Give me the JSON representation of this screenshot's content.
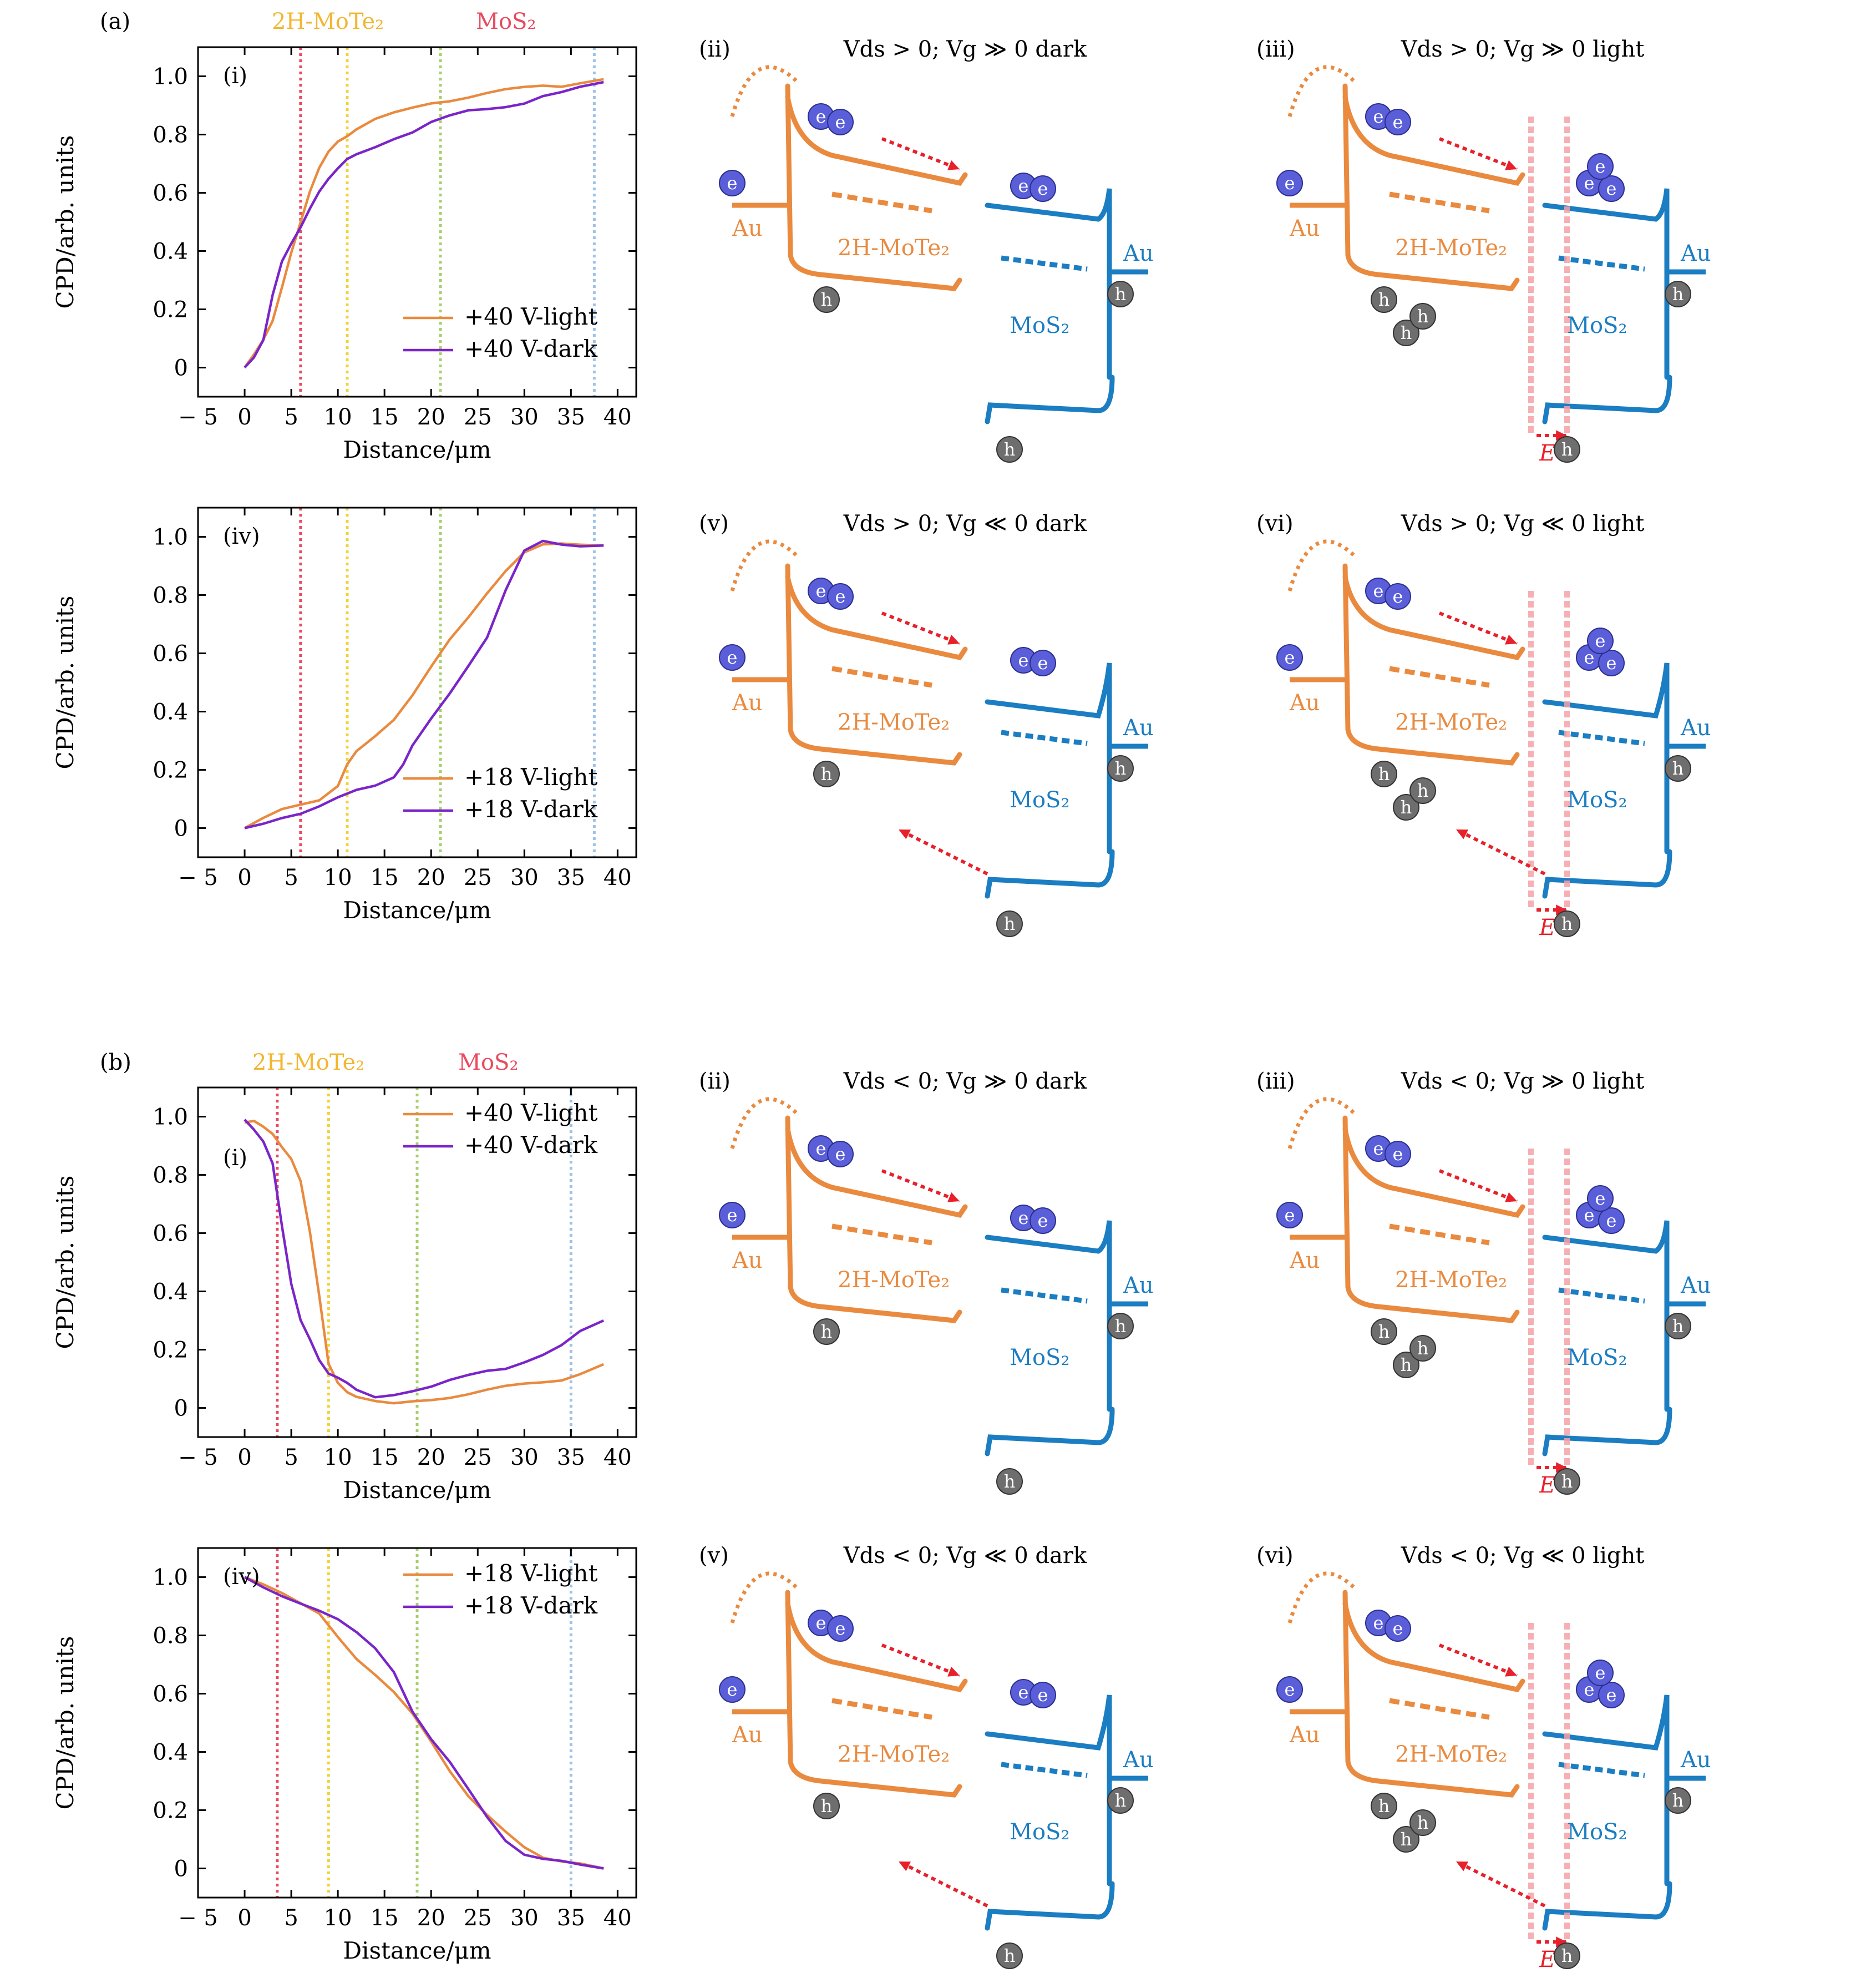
{
  "figure": {
    "label_a": "(a)",
    "label_b": "(b)",
    "top_labels": {
      "mote2": "2H-MoTe₂",
      "mos2": "MoS₂"
    }
  },
  "colors": {
    "orange": "#E98A3F",
    "purple": "#7A25C9",
    "blue": "#1B7DC2",
    "red_arrow": "#E8202A",
    "pink_band": "#F5A3A8",
    "line_red": "#E84A5F",
    "line_yellow": "#F2D23A",
    "line_green": "#A6CF6B",
    "line_blue": "#9EC3E6",
    "electron": "#5A5FD9",
    "hole": "#6E6E6E"
  },
  "chart_data": [
    {
      "id": "a-i",
      "type": "line",
      "panel_label": "(i)",
      "xlabel": "Distance/μm",
      "ylabel": "CPD/arb. units",
      "xlim": [
        -5,
        42
      ],
      "ylim": [
        -0.1,
        1.1
      ],
      "xticks": [
        -5,
        0,
        5,
        10,
        15,
        20,
        25,
        30,
        35,
        40
      ],
      "yticks": [
        0,
        0.2,
        0.4,
        0.6,
        0.8,
        1.0
      ],
      "vlines": [
        6,
        11,
        21,
        37.5
      ],
      "legend_position": "bottom-right",
      "series": [
        {
          "name": "+40 V-light",
          "color": "orange",
          "x": [
            0,
            1,
            2,
            3,
            4,
            5,
            6,
            7,
            8,
            9,
            10,
            11,
            12,
            14,
            16,
            18,
            20,
            22,
            24,
            26,
            28,
            30,
            32,
            34,
            36,
            38.5
          ],
          "y": [
            0,
            0.04,
            0.09,
            0.16,
            0.28,
            0.4,
            0.5,
            0.6,
            0.68,
            0.74,
            0.78,
            0.8,
            0.82,
            0.85,
            0.87,
            0.89,
            0.91,
            0.92,
            0.93,
            0.94,
            0.95,
            0.96,
            0.97,
            0.97,
            0.98,
            0.99
          ]
        },
        {
          "name": "+40 V-dark",
          "color": "purple",
          "x": [
            0,
            1,
            2,
            3,
            4,
            5,
            6,
            7,
            8,
            9,
            10,
            11,
            12,
            14,
            16,
            18,
            20,
            22,
            24,
            26,
            28,
            30,
            32,
            34,
            36,
            38.5
          ],
          "y": [
            0,
            0.04,
            0.1,
            0.25,
            0.36,
            0.42,
            0.48,
            0.55,
            0.61,
            0.65,
            0.68,
            0.71,
            0.73,
            0.76,
            0.79,
            0.81,
            0.84,
            0.86,
            0.88,
            0.89,
            0.9,
            0.91,
            0.93,
            0.94,
            0.96,
            0.98
          ]
        }
      ]
    },
    {
      "id": "a-iv",
      "type": "line",
      "panel_label": "(iv)",
      "xlabel": "Distance/μm",
      "ylabel": "CPD/arb. units",
      "xlim": [
        -5,
        42
      ],
      "ylim": [
        -0.1,
        1.1
      ],
      "xticks": [
        -5,
        0,
        5,
        10,
        15,
        20,
        25,
        30,
        35,
        40
      ],
      "yticks": [
        0,
        0.2,
        0.4,
        0.6,
        0.8,
        1.0
      ],
      "vlines": [
        6,
        11,
        21,
        37.5
      ],
      "legend_position": "bottom-right",
      "series": [
        {
          "name": "+18 V-light",
          "color": "orange",
          "x": [
            0,
            2,
            4,
            6,
            8,
            10,
            11,
            12,
            14,
            16,
            18,
            20,
            22,
            24,
            26,
            28,
            30,
            32,
            34,
            36,
            38.5
          ],
          "y": [
            0,
            0.03,
            0.06,
            0.08,
            0.1,
            0.15,
            0.22,
            0.26,
            0.31,
            0.37,
            0.46,
            0.56,
            0.65,
            0.72,
            0.8,
            0.88,
            0.95,
            0.98,
            0.98,
            0.97,
            0.97
          ]
        },
        {
          "name": "+18 V-dark",
          "color": "purple",
          "x": [
            0,
            2,
            4,
            6,
            8,
            10,
            12,
            14,
            16,
            17,
            18,
            20,
            22,
            24,
            26,
            28,
            30,
            32,
            34,
            36,
            38.5
          ],
          "y": [
            0,
            0.02,
            0.04,
            0.05,
            0.07,
            0.1,
            0.13,
            0.15,
            0.18,
            0.22,
            0.28,
            0.37,
            0.46,
            0.56,
            0.66,
            0.82,
            0.95,
            0.98,
            0.97,
            0.97,
            0.97
          ]
        }
      ]
    },
    {
      "id": "b-i",
      "type": "line",
      "panel_label": "(i)",
      "xlabel": "Distance/μm",
      "ylabel": "CPD/arb. units",
      "xlim": [
        -5,
        42
      ],
      "ylim": [
        -0.1,
        1.1
      ],
      "xticks": [
        -5,
        0,
        5,
        10,
        15,
        20,
        25,
        30,
        35,
        40
      ],
      "yticks": [
        0,
        0.2,
        0.4,
        0.6,
        0.8,
        1.0
      ],
      "vlines": [
        3.5,
        9,
        18.5,
        35
      ],
      "legend_position": "top-right",
      "series": [
        {
          "name": "+40 V-light",
          "color": "orange",
          "x": [
            0,
            1,
            2,
            3,
            4,
            5,
            6,
            7,
            8,
            9,
            10,
            11,
            12,
            14,
            16,
            18,
            20,
            22,
            24,
            26,
            28,
            30,
            32,
            34,
            36,
            38.5
          ],
          "y": [
            0.98,
            0.98,
            0.96,
            0.94,
            0.9,
            0.86,
            0.78,
            0.6,
            0.38,
            0.15,
            0.09,
            0.06,
            0.04,
            0.02,
            0.01,
            0.02,
            0.03,
            0.04,
            0.05,
            0.06,
            0.07,
            0.08,
            0.09,
            0.1,
            0.12,
            0.15
          ]
        },
        {
          "name": "+40 V-dark",
          "color": "purple",
          "x": [
            0,
            1,
            2,
            3,
            4,
            5,
            6,
            7,
            8,
            9,
            10,
            11,
            12,
            14,
            16,
            18,
            20,
            22,
            24,
            26,
            28,
            30,
            32,
            34,
            36,
            38.5
          ],
          "y": [
            0.99,
            0.96,
            0.92,
            0.84,
            0.62,
            0.42,
            0.3,
            0.24,
            0.17,
            0.12,
            0.1,
            0.08,
            0.06,
            0.04,
            0.05,
            0.06,
            0.07,
            0.09,
            0.11,
            0.13,
            0.14,
            0.16,
            0.18,
            0.21,
            0.26,
            0.3
          ]
        }
      ]
    },
    {
      "id": "b-iv",
      "type": "line",
      "panel_label": "(iv)",
      "xlabel": "Distance/μm",
      "ylabel": "CPD/arb. units",
      "xlim": [
        -5,
        42
      ],
      "ylim": [
        -0.1,
        1.1
      ],
      "xticks": [
        -5,
        0,
        5,
        10,
        15,
        20,
        25,
        30,
        35,
        40
      ],
      "yticks": [
        0,
        0.2,
        0.4,
        0.6,
        0.8,
        1.0
      ],
      "vlines": [
        3.5,
        9,
        18.5,
        35
      ],
      "legend_position": "top-right",
      "series": [
        {
          "name": "+18 V-light",
          "color": "orange",
          "x": [
            0,
            2,
            4,
            6,
            8,
            10,
            12,
            14,
            16,
            18,
            20,
            22,
            24,
            26,
            28,
            30,
            32,
            34,
            36,
            38.5
          ],
          "y": [
            1.0,
            0.97,
            0.94,
            0.91,
            0.88,
            0.8,
            0.72,
            0.66,
            0.6,
            0.53,
            0.44,
            0.34,
            0.25,
            0.18,
            0.12,
            0.07,
            0.04,
            0.03,
            0.02,
            0.0
          ]
        },
        {
          "name": "+18 V-dark",
          "color": "purple",
          "x": [
            0,
            2,
            4,
            6,
            8,
            10,
            12,
            14,
            16,
            18,
            20,
            22,
            24,
            26,
            28,
            30,
            32,
            34,
            36,
            38.5
          ],
          "y": [
            1.0,
            0.97,
            0.94,
            0.91,
            0.88,
            0.85,
            0.81,
            0.76,
            0.68,
            0.54,
            0.44,
            0.36,
            0.27,
            0.18,
            0.1,
            0.05,
            0.03,
            0.02,
            0.01,
            0.0
          ]
        }
      ]
    }
  ],
  "diagrams": [
    {
      "id": "a-ii",
      "label": "(ii)",
      "title": "Vds > 0; Vg ≫ 0 dark",
      "mote2_label": "2H-MoTe₂",
      "mos2_label": "MoS₂",
      "au_left": "Au",
      "au_right": "Au"
    },
    {
      "id": "a-iii",
      "label": "(iii)",
      "title": "Vds > 0; Vg ≫ 0 light",
      "mote2_label": "2H-MoTe₂",
      "mos2_label": "MoS₂",
      "au_left": "Au",
      "au_right": "Au",
      "field": "E"
    },
    {
      "id": "a-v",
      "label": "(v)",
      "title": "Vds > 0; Vg ≪ 0 dark",
      "mote2_label": "2H-MoTe₂",
      "mos2_label": "MoS₂",
      "au_left": "Au",
      "au_right": "Au"
    },
    {
      "id": "a-vi",
      "label": "(vi)",
      "title": "Vds > 0; Vg ≪ 0 light",
      "mote2_label": "2H-MoTe₂",
      "mos2_label": "MoS₂",
      "au_left": "Au",
      "au_right": "Au",
      "field": "E"
    },
    {
      "id": "b-ii",
      "label": "(ii)",
      "title": "Vds < 0; Vg ≫ 0 dark",
      "mote2_label": "2H-MoTe₂",
      "mos2_label": "MoS₂",
      "au_left": "Au",
      "au_right": "Au"
    },
    {
      "id": "b-iii",
      "label": "(iii)",
      "title": "Vds < 0; Vg ≫ 0 light",
      "mote2_label": "2H-MoTe₂",
      "mos2_label": "MoS₂",
      "au_left": "Au",
      "au_right": "Au",
      "field": "E"
    },
    {
      "id": "b-v",
      "label": "(v)",
      "title": "Vds < 0; Vg ≪ 0 dark",
      "mote2_label": "2H-MoTe₂",
      "mos2_label": "MoS₂",
      "au_left": "Au",
      "au_right": "Au"
    },
    {
      "id": "b-vi",
      "label": "(vi)",
      "title": "Vds < 0; Vg ≪ 0 light",
      "mote2_label": "2H-MoTe₂",
      "mos2_label": "MoS₂",
      "au_left": "Au",
      "au_right": "Au",
      "field": "E"
    }
  ],
  "carrier_glyphs": {
    "electron": "e",
    "hole": "h"
  }
}
